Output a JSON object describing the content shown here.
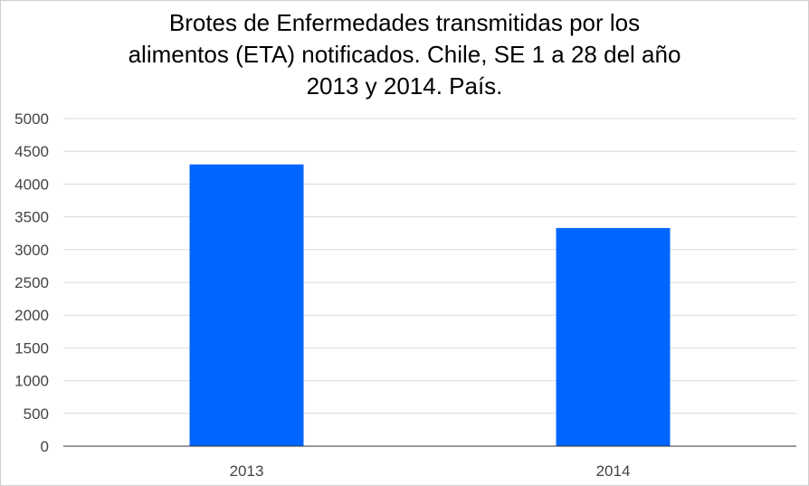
{
  "chart_data": {
    "type": "bar",
    "title_lines": [
      "Brotes de Enfermedades transmitidas por los",
      "alimentos (ETA) notificados. Chile, SE 1 a 28 del año",
      "2013 y 2014. País."
    ],
    "categories": [
      "2013",
      "2014"
    ],
    "values": [
      4300,
      3330
    ],
    "ylim": [
      0,
      5000
    ],
    "yticks": [
      "0",
      "500",
      "1000",
      "1500",
      "2000",
      "2500",
      "3000",
      "3500",
      "4000",
      "4500",
      "5000"
    ],
    "xlabel": "",
    "ylabel": "",
    "grid": true,
    "legend": "none",
    "bar_color": "#0066ff",
    "grid_color": "#d9d9d9",
    "axis_color": "#333333"
  }
}
